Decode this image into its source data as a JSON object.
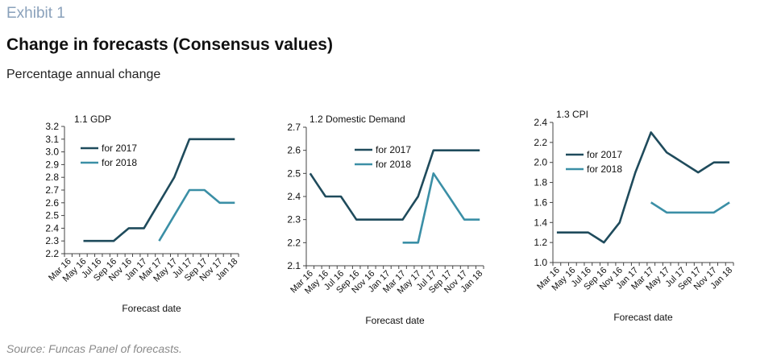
{
  "header": {
    "exhibit": "Exhibit 1",
    "title": "Change in forecasts (Consensus values)",
    "subtitle": "Percentage annual change"
  },
  "footer": {
    "source": "Source: Funcas Panel of forecasts."
  },
  "colors": {
    "series_2017": "#1f4b5c",
    "series_2018": "#3b8fa6",
    "axis": "#444444"
  },
  "chart_data": [
    {
      "type": "line",
      "title": "1.1 GDP",
      "xlabel": "Forecast date",
      "ylabel": "",
      "categories": [
        "Mar 16",
        "Apr 16",
        "May 16",
        "Jun 16",
        "Jul 16",
        "Aug 16",
        "Sep 16",
        "Oct 16",
        "Nov 16",
        "Dec 16",
        "Jan 17",
        "Feb 17",
        "Mar 17",
        "Apr 17",
        "May 17",
        "Jun 17",
        "Jul 17",
        "Aug 17",
        "Sep 17",
        "Oct 17",
        "Nov 17",
        "Dec 17",
        "Jan 18"
      ],
      "tick_labels": [
        "Mar 16",
        "May 16",
        "Jul 16",
        "Sep 16",
        "Nov 16",
        "Jan 17",
        "Mar 17",
        "May 17",
        "Jul 17",
        "Sep 17",
        "Nov 17",
        "Jan 18"
      ],
      "ylim": [
        2.2,
        3.2
      ],
      "yticks": [
        "2.2",
        "2.3",
        "2.4",
        "2.5",
        "2.6",
        "2.7",
        "2.8",
        "2.9",
        "3.0",
        "3.1",
        "3.2"
      ],
      "legend_position": "left",
      "grid": false,
      "series": [
        {
          "name": "for 2017",
          "values": [
            null,
            null,
            2.3,
            2.3,
            2.3,
            2.3,
            2.3,
            2.35,
            2.4,
            2.4,
            2.4,
            2.5,
            2.6,
            2.7,
            2.8,
            2.95,
            3.1,
            3.1,
            3.1,
            3.1,
            3.1,
            3.1,
            3.1
          ]
        },
        {
          "name": "for 2018",
          "values": [
            null,
            null,
            null,
            null,
            null,
            null,
            null,
            null,
            null,
            null,
            null,
            null,
            2.3,
            2.4,
            2.5,
            2.6,
            2.7,
            2.7,
            2.7,
            2.65,
            2.6,
            2.6,
            2.6
          ]
        }
      ]
    },
    {
      "type": "line",
      "title": "1.2 Domestic Demand",
      "xlabel": "Forecast date",
      "ylabel": "",
      "categories": [
        "Mar 16",
        "Apr 16",
        "May 16",
        "Jun 16",
        "Jul 16",
        "Aug 16",
        "Sep 16",
        "Oct 16",
        "Nov 16",
        "Dec 16",
        "Jan 17",
        "Feb 17",
        "Mar 17",
        "Apr 17",
        "May 17",
        "Jun 17",
        "Jul 17",
        "Aug 17",
        "Sep 17",
        "Oct 17",
        "Nov 17",
        "Dec 17",
        "Jan 18"
      ],
      "tick_labels": [
        "Mar 16",
        "May 16",
        "Jul 16",
        "Sep 16",
        "Nov 16",
        "Jan 17",
        "Mar 17",
        "May 17",
        "Jul 17",
        "Sep 17",
        "Nov 17",
        "Jan 18"
      ],
      "ylim": [
        2.1,
        2.7
      ],
      "yticks": [
        "2.1",
        "2.2",
        "2.3",
        "2.4",
        "2.5",
        "2.6",
        "2.7"
      ],
      "legend_position": "top-right",
      "grid": false,
      "series": [
        {
          "name": "for 2017",
          "values": [
            2.5,
            2.45,
            2.4,
            2.4,
            2.4,
            2.35,
            2.3,
            2.3,
            2.3,
            2.3,
            2.3,
            2.3,
            2.3,
            2.35,
            2.4,
            2.5,
            2.6,
            2.6,
            2.6,
            2.6,
            2.6,
            2.6,
            2.6
          ]
        },
        {
          "name": "for 2018",
          "values": [
            null,
            null,
            null,
            null,
            null,
            null,
            null,
            null,
            null,
            null,
            null,
            null,
            2.2,
            2.2,
            2.2,
            2.35,
            2.5,
            2.45,
            2.4,
            2.35,
            2.3,
            2.3,
            2.3
          ]
        }
      ]
    },
    {
      "type": "line",
      "title": "1.3 CPI",
      "xlabel": "Forecast date",
      "ylabel": "",
      "categories": [
        "Mar 16",
        "Apr 16",
        "May 16",
        "Jun 16",
        "Jul 16",
        "Aug 16",
        "Sep 16",
        "Oct 16",
        "Nov 16",
        "Dec 16",
        "Jan 17",
        "Feb 17",
        "Mar 17",
        "Apr 17",
        "May 17",
        "Jun 17",
        "Jul 17",
        "Aug 17",
        "Sep 17",
        "Oct 17",
        "Nov 17",
        "Dec 17",
        "Jan 18"
      ],
      "tick_labels": [
        "Mar 16",
        "May 16",
        "Jul 16",
        "Sep 16",
        "Nov 16",
        "Jan 17",
        "Mar 17",
        "May 17",
        "Jul 17",
        "Sep 17",
        "Nov 17",
        "Jan 18"
      ],
      "ylim": [
        1.0,
        2.4
      ],
      "yticks": [
        "1.0",
        "1.2",
        "1.4",
        "1.6",
        "1.8",
        "2.0",
        "2.2",
        "2.4"
      ],
      "legend_position": "top-right",
      "grid": false,
      "series": [
        {
          "name": "for 2017",
          "values": [
            1.3,
            1.3,
            1.3,
            1.3,
            1.3,
            1.25,
            1.2,
            1.3,
            1.4,
            1.65,
            1.9,
            2.1,
            2.3,
            2.2,
            2.1,
            2.05,
            2.0,
            1.95,
            1.9,
            1.95,
            2.0,
            2.0,
            2.0
          ]
        },
        {
          "name": "for 2018",
          "values": [
            null,
            null,
            null,
            null,
            null,
            null,
            null,
            null,
            null,
            null,
            null,
            null,
            1.6,
            1.55,
            1.5,
            1.5,
            1.5,
            1.5,
            1.5,
            1.5,
            1.5,
            1.55,
            1.6
          ]
        }
      ]
    }
  ]
}
